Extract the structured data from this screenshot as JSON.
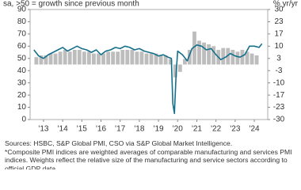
{
  "chart_data": {
    "type": "bar-line",
    "header_left": "sa, >50 = growth since previous month",
    "header_right": "% yr/yr",
    "xlim": [
      2012.8,
      2025.2
    ],
    "xticks": [
      {
        "value": 2013.5,
        "label": "'13"
      },
      {
        "value": 2014.5,
        "label": "'14"
      },
      {
        "value": 2015.5,
        "label": "'15"
      },
      {
        "value": 2016.5,
        "label": "'16"
      },
      {
        "value": 2017.5,
        "label": "'17"
      },
      {
        "value": 2018.5,
        "label": "'18"
      },
      {
        "value": 2019.5,
        "label": "'19"
      },
      {
        "value": 2020.5,
        "label": "'20"
      },
      {
        "value": 2021.5,
        "label": "'21"
      },
      {
        "value": 2022.5,
        "label": "'22"
      },
      {
        "value": 2023.5,
        "label": "'23"
      },
      {
        "value": 2024.5,
        "label": "'24"
      }
    ],
    "ylim": [
      0,
      90
    ],
    "yticks": [
      0,
      10,
      20,
      30,
      40,
      50,
      60,
      70,
      80,
      90
    ],
    "y2lim": [
      -30,
      30
    ],
    "y2ticks": [
      30,
      {
        "value": 23.33,
        "label": "23"
      },
      {
        "value": 16.67,
        "label": "17"
      },
      10,
      {
        "value": 3.33,
        "label": "3"
      },
      {
        "value": -3.33,
        "label": "-3"
      },
      -10,
      {
        "value": -16.67,
        "label": "-17"
      },
      {
        "value": -23.33,
        "label": "-23"
      },
      -30
    ],
    "bars": {
      "color": "#bdbdbd",
      "axis": "y2",
      "x": [
        2013.125,
        2013.375,
        2013.625,
        2013.875,
        2014.125,
        2014.375,
        2014.625,
        2014.875,
        2015.125,
        2015.375,
        2015.625,
        2015.875,
        2016.125,
        2016.375,
        2016.625,
        2016.875,
        2017.125,
        2017.375,
        2017.625,
        2017.875,
        2018.125,
        2018.375,
        2018.625,
        2018.875,
        2019.125,
        2019.375,
        2019.625,
        2019.875,
        2020.125,
        2020.375,
        2020.625,
        2020.875,
        2021.125,
        2021.375,
        2021.625,
        2021.875,
        2022.125,
        2022.375,
        2022.625,
        2022.875,
        2023.125,
        2023.375,
        2023.625,
        2023.875,
        2024.125,
        2024.375,
        2024.625
      ],
      "values": [
        4,
        5,
        5,
        6,
        6,
        7,
        8,
        7,
        8,
        8,
        7,
        7,
        6,
        6,
        6,
        7,
        7,
        7,
        8,
        8,
        8,
        7,
        7,
        6,
        6,
        6,
        5,
        5,
        3,
        -7,
        -4,
        3,
        8,
        18,
        13,
        12,
        11,
        10,
        8,
        9,
        9,
        8,
        7,
        8,
        7,
        6,
        5
      ]
    },
    "line": {
      "color": "#16708c",
      "x": [
        2013.0,
        2013.25,
        2013.5,
        2013.75,
        2014.0,
        2014.25,
        2014.5,
        2014.75,
        2015.0,
        2015.25,
        2015.5,
        2015.75,
        2016.0,
        2016.25,
        2016.5,
        2016.75,
        2017.0,
        2017.25,
        2017.5,
        2017.75,
        2018.0,
        2018.25,
        2018.5,
        2018.75,
        2019.0,
        2019.25,
        2019.5,
        2019.75,
        2020.0,
        2020.17,
        2020.25,
        2020.33,
        2020.42,
        2020.5,
        2020.75,
        2021.0,
        2021.25,
        2021.5,
        2021.75,
        2022.0,
        2022.25,
        2022.5,
        2022.75,
        2023.0,
        2023.25,
        2023.5,
        2023.75,
        2024.0,
        2024.25,
        2024.5,
        2024.75,
        2024.9
      ],
      "values": [
        57,
        52,
        50,
        53,
        55,
        57,
        59,
        56,
        58,
        60,
        58,
        57,
        55,
        57,
        53,
        56,
        57,
        59,
        58,
        60,
        59,
        57,
        58,
        56,
        55,
        54,
        52,
        53,
        51,
        50,
        13,
        5,
        38,
        56,
        53,
        48,
        58,
        61,
        60,
        57,
        58,
        53,
        49,
        51,
        54,
        52,
        51,
        53,
        60,
        60,
        59,
        62
      ]
    },
    "sources": "Sources: HSBC, S&P Global PMI, CSO via S&P Global Market Intelligence.",
    "note": "*Composite PMI indices are weighted averages of comparable manufacturing and services PMI indices. Weights reflect the relative size of the manufacturing and service sectors according to official GDP data."
  }
}
